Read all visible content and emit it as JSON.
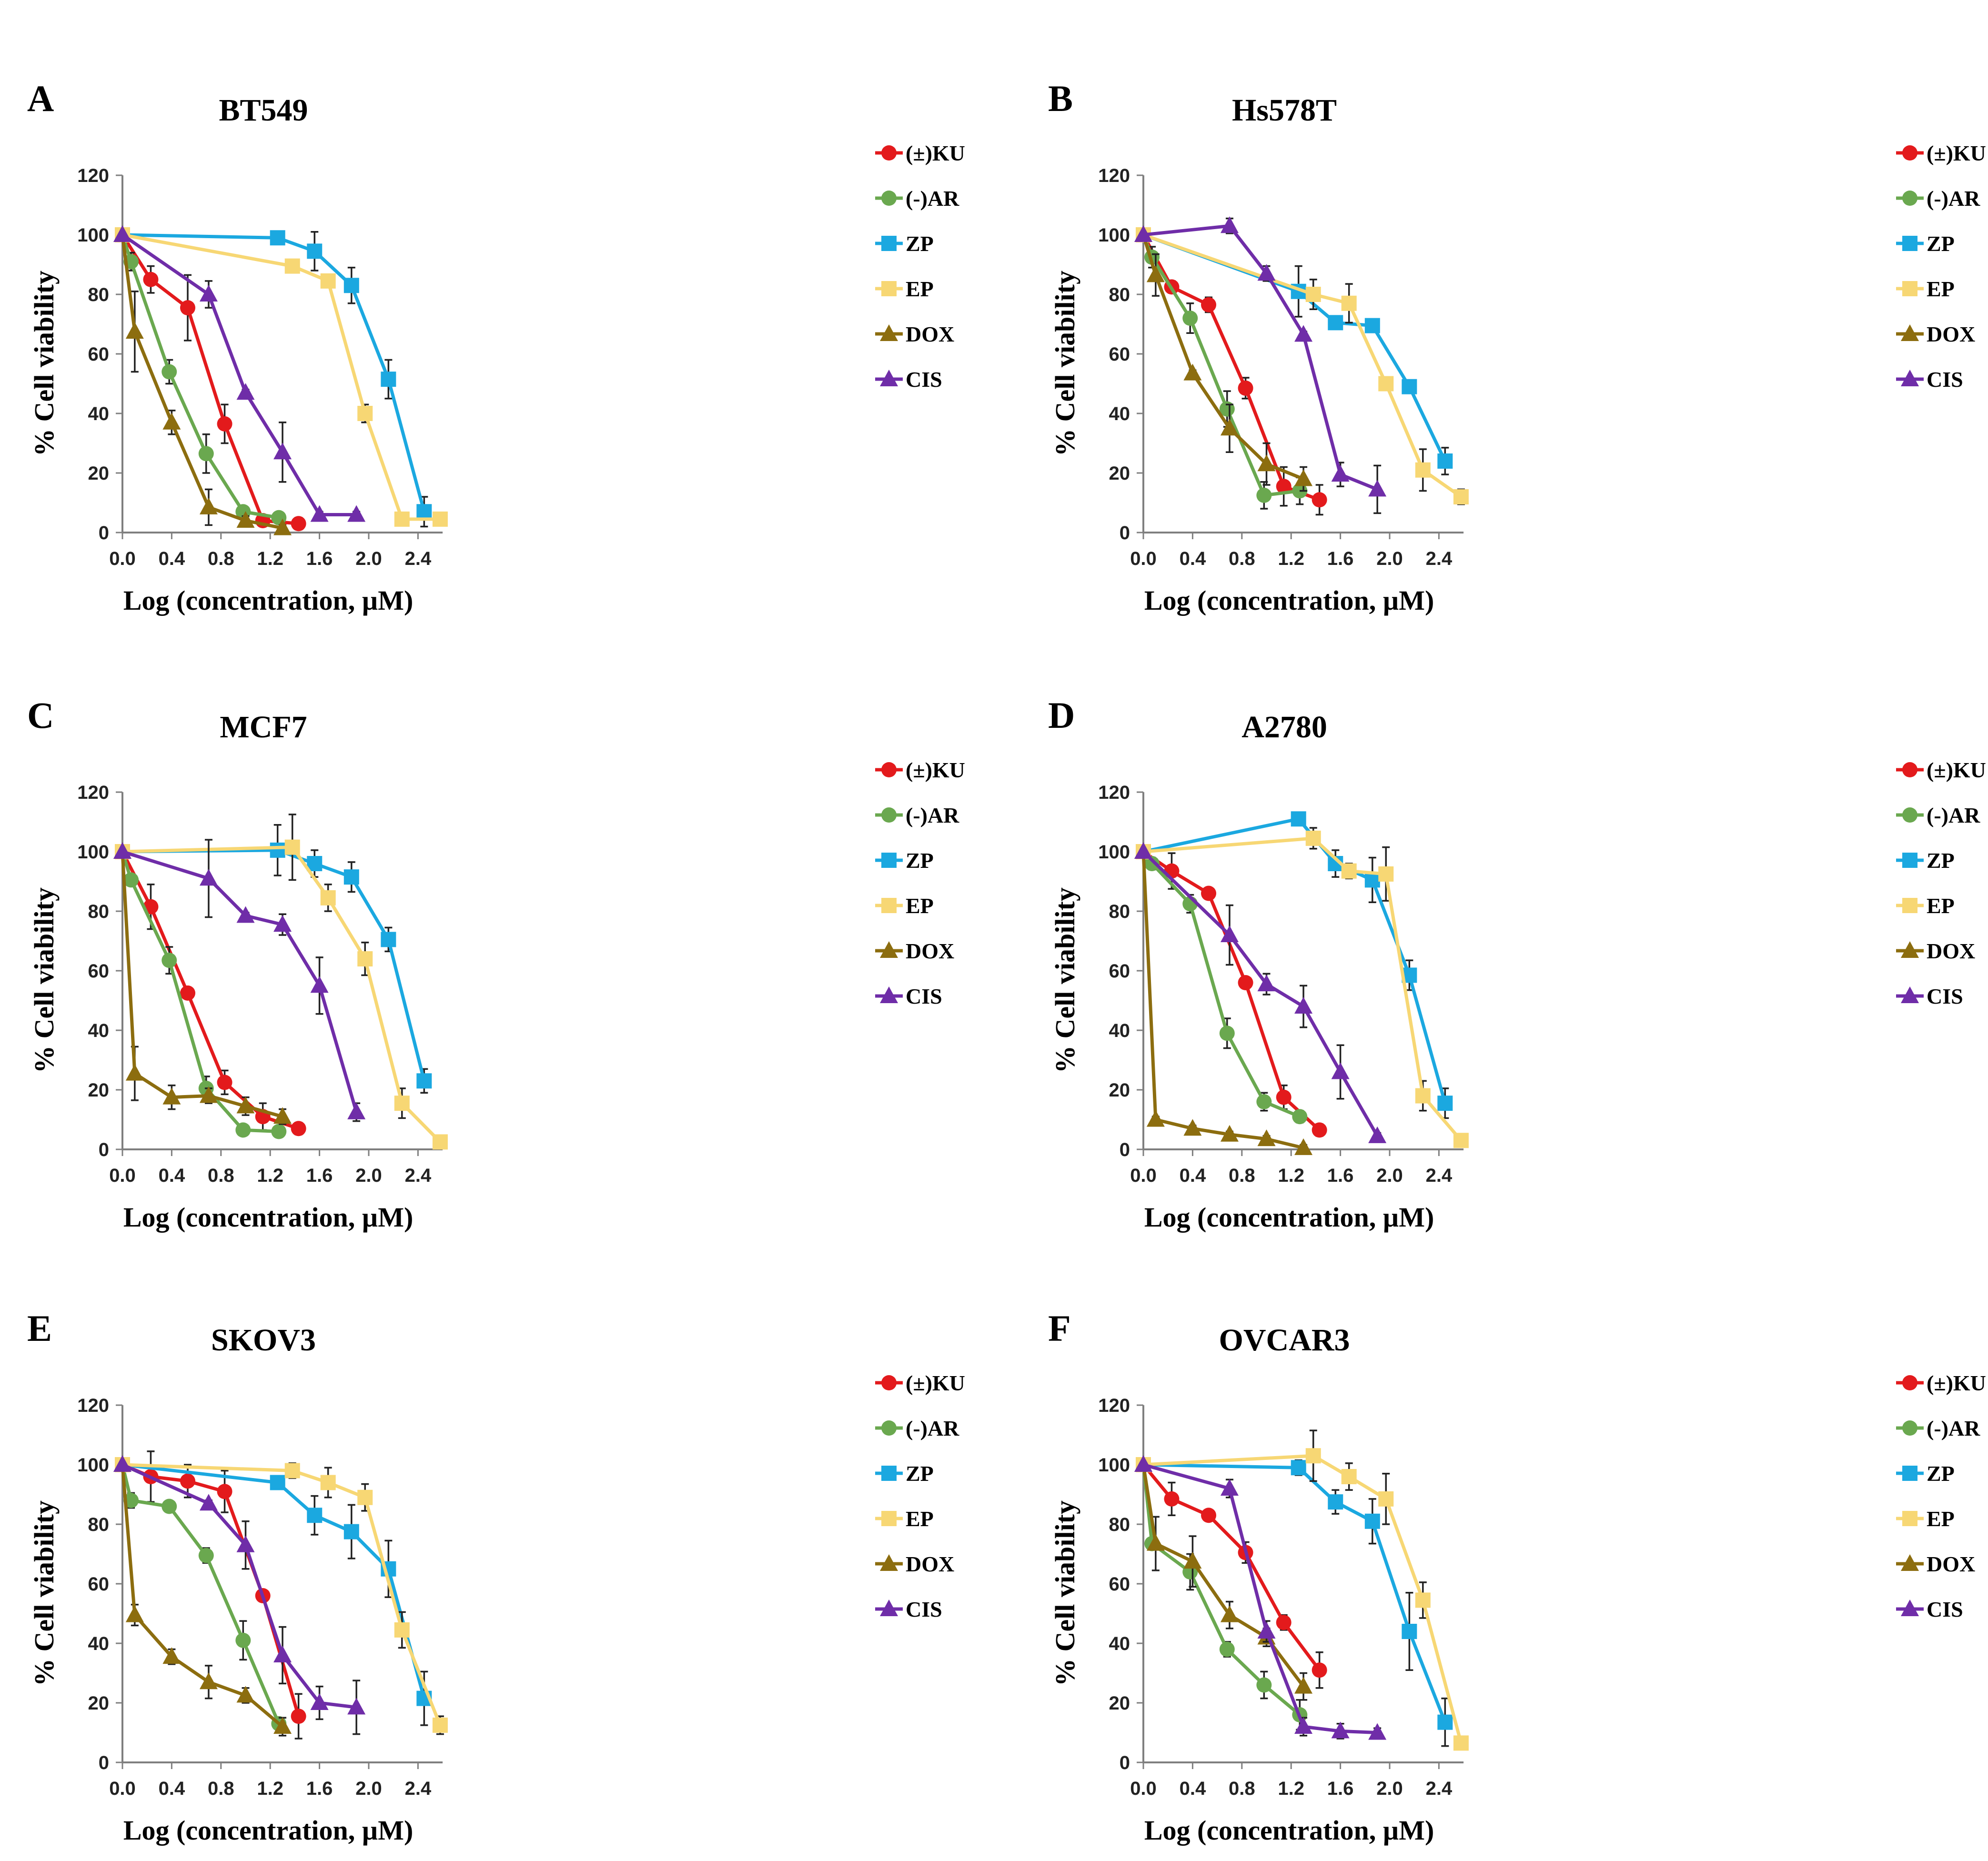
{
  "figure": {
    "xlabel": "Log (concentration, µM)",
    "ylabel": "% Cell viability",
    "x_ticks": [
      0.0,
      0.4,
      0.8,
      1.2,
      1.6,
      2.0,
      2.4
    ],
    "y_ticks": [
      0,
      20,
      40,
      60,
      80,
      100,
      120
    ],
    "xlim": [
      0,
      2.6
    ],
    "ylim": [
      0,
      120
    ]
  },
  "legend": [
    {
      "name": "(±)KU",
      "color": "#e31a1c",
      "marker": "circle"
    },
    {
      "name": "(-)AR",
      "color": "#6aa84f",
      "marker": "circle"
    },
    {
      "name": "ZP",
      "color": "#1ba8e0",
      "marker": "square"
    },
    {
      "name": "EP",
      "color": "#f7d774",
      "marker": "square"
    },
    {
      "name": "DOX",
      "color": "#8c6d0f",
      "marker": "triangle"
    },
    {
      "name": "CIS",
      "color": "#6f2da8",
      "marker": "triangle"
    }
  ],
  "chart_data": [
    {
      "type": "line",
      "panel": "A",
      "title": "BT549",
      "xlabel": "Log (concentration, µM)",
      "ylabel": "% Cell viability",
      "xlim": [
        0,
        2.6
      ],
      "ylim": [
        0,
        120
      ],
      "legend_position": "top-right",
      "series": [
        {
          "name": "(±)KU",
          "x": [
            0,
            0.23,
            0.53,
            0.83,
            1.14,
            1.43
          ],
          "y": [
            100,
            85,
            75.5,
            36.5,
            4,
            3
          ],
          "err": [
            0,
            4.5,
            11,
            6.5,
            1,
            2
          ]
        },
        {
          "name": "(-)AR",
          "x": [
            0,
            0.07,
            0.38,
            0.68,
            0.98,
            1.27
          ],
          "y": [
            100,
            91,
            54,
            26.5,
            7,
            5
          ],
          "err": [
            0,
            3,
            4,
            6.5,
            1,
            1
          ]
        },
        {
          "name": "ZP",
          "x": [
            0,
            1.26,
            1.56,
            1.86,
            2.16,
            2.45
          ],
          "y": [
            100,
            99,
            94.5,
            83,
            51.5,
            7
          ],
          "err": [
            0,
            1,
            6.5,
            6,
            6.5,
            5
          ]
        },
        {
          "name": "EP",
          "x": [
            0,
            1.38,
            1.67,
            1.97,
            2.27,
            2.58
          ],
          "y": [
            100,
            89.5,
            84.5,
            40,
            4.5,
            4.5
          ],
          "err": [
            0,
            2,
            1.5,
            3,
            1,
            1
          ]
        },
        {
          "name": "DOX",
          "x": [
            0,
            0.1,
            0.4,
            0.7,
            1.0,
            1.3
          ],
          "y": [
            100,
            67.5,
            37,
            8.5,
            4,
            1.5
          ],
          "err": [
            0,
            13.5,
            4,
            6,
            1.5,
            1
          ]
        },
        {
          "name": "CIS",
          "x": [
            0,
            0.7,
            1.0,
            1.3,
            1.6,
            1.9
          ],
          "y": [
            100,
            80,
            47,
            27,
            6,
            6
          ],
          "err": [
            0,
            4.5,
            1,
            10,
            1,
            1
          ]
        }
      ]
    },
    {
      "type": "line",
      "panel": "B",
      "title": "Hs578T",
      "xlabel": "Log (concentration, µM)",
      "ylabel": "% Cell viability",
      "xlim": [
        0,
        2.6
      ],
      "ylim": [
        0,
        120
      ],
      "legend_position": "top-right",
      "series": [
        {
          "name": "(±)KU",
          "x": [
            0,
            0.23,
            0.53,
            0.83,
            1.14,
            1.43
          ],
          "y": [
            100,
            82.5,
            76.5,
            48.5,
            15.5,
            11
          ],
          "err": [
            0,
            2,
            2.5,
            3.5,
            6.5,
            5
          ]
        },
        {
          "name": "(-)AR",
          "x": [
            0,
            0.07,
            0.38,
            0.68,
            0.98,
            1.27
          ],
          "y": [
            100,
            92.5,
            72,
            41.5,
            12.5,
            14
          ],
          "err": [
            0,
            3.5,
            5,
            6,
            4.5,
            4.5
          ]
        },
        {
          "name": "ZP",
          "x": [
            0,
            1.26,
            1.56,
            1.86,
            2.16,
            2.45
          ],
          "y": [
            100,
            81,
            70.5,
            69.5,
            49,
            24
          ],
          "err": [
            0,
            8.5,
            1,
            1,
            1,
            4.5
          ]
        },
        {
          "name": "EP",
          "x": [
            0,
            1.38,
            1.67,
            1.97,
            2.27,
            2.58
          ],
          "y": [
            100,
            80,
            77,
            50,
            21,
            12
          ],
          "err": [
            0,
            5,
            6.5,
            1,
            7,
            2.5
          ]
        },
        {
          "name": "DOX",
          "x": [
            0,
            0.1,
            0.4,
            0.7,
            1.0,
            1.3
          ],
          "y": [
            100,
            86.5,
            53.5,
            35,
            23,
            18
          ],
          "err": [
            0,
            7,
            1,
            8,
            7,
            4
          ]
        },
        {
          "name": "CIS",
          "x": [
            0,
            0.7,
            1.0,
            1.3,
            1.6,
            1.9
          ],
          "y": [
            100,
            103,
            87,
            66.5,
            19.5,
            14.5
          ],
          "err": [
            0,
            2.5,
            2.5,
            1,
            4,
            8
          ]
        }
      ]
    },
    {
      "type": "line",
      "panel": "C",
      "title": "MCF7",
      "xlabel": "Log (concentration, µM)",
      "ylabel": "% Cell viability",
      "xlim": [
        0,
        2.6
      ],
      "ylim": [
        0,
        120
      ],
      "legend_position": "top-right",
      "series": [
        {
          "name": "(±)KU",
          "x": [
            0,
            0.23,
            0.53,
            0.83,
            1.14,
            1.43
          ],
          "y": [
            100,
            81.5,
            52.5,
            22.5,
            11,
            7
          ],
          "err": [
            0,
            7.5,
            1,
            4,
            4.5,
            2
          ]
        },
        {
          "name": "(-)AR",
          "x": [
            0,
            0.07,
            0.38,
            0.68,
            0.98,
            1.27
          ],
          "y": [
            100,
            90.5,
            63.5,
            20.5,
            6.5,
            6
          ],
          "err": [
            0,
            1,
            4.5,
            4,
            1.5,
            1
          ]
        },
        {
          "name": "ZP",
          "x": [
            0,
            1.26,
            1.56,
            1.86,
            2.16,
            2.45
          ],
          "y": [
            100,
            100.5,
            96,
            91.5,
            70.5,
            23
          ],
          "err": [
            0,
            8.5,
            4.5,
            5,
            4,
            4
          ]
        },
        {
          "name": "EP",
          "x": [
            0,
            1.38,
            1.67,
            1.97,
            2.27,
            2.58
          ],
          "y": [
            100,
            101.5,
            84.5,
            64,
            15.5,
            2.5
          ],
          "err": [
            0,
            11,
            4.5,
            5.5,
            5,
            1
          ]
        },
        {
          "name": "DOX",
          "x": [
            0,
            0.1,
            0.4,
            0.7,
            1.0,
            1.3
          ],
          "y": [
            100,
            25.5,
            17.5,
            18,
            14.5,
            11
          ],
          "err": [
            0,
            9,
            4,
            2.5,
            3,
            2.5
          ]
        },
        {
          "name": "CIS",
          "x": [
            0,
            0.7,
            1.0,
            1.3,
            1.6,
            1.9
          ],
          "y": [
            100,
            91,
            78.5,
            75.5,
            55,
            12.5
          ],
          "err": [
            0,
            13,
            1,
            3.5,
            9.5,
            3
          ]
        }
      ]
    },
    {
      "type": "line",
      "panel": "D",
      "title": "A2780",
      "xlabel": "Log (concentration, µM)",
      "ylabel": "% Cell viability",
      "xlim": [
        0,
        2.6
      ],
      "ylim": [
        0,
        120
      ],
      "legend_position": "top-right",
      "series": [
        {
          "name": "(±)KU",
          "x": [
            0,
            0.23,
            0.53,
            0.83,
            1.14,
            1.43
          ],
          "y": [
            100,
            93.5,
            86,
            56,
            17.5,
            6.5
          ],
          "err": [
            0,
            6,
            1,
            1,
            4,
            2
          ]
        },
        {
          "name": "(-)AR",
          "x": [
            0,
            0.07,
            0.38,
            0.68,
            0.98,
            1.27
          ],
          "y": [
            100,
            96,
            82.5,
            39,
            16,
            11
          ],
          "err": [
            0,
            2,
            3,
            5,
            3,
            2
          ]
        },
        {
          "name": "ZP",
          "x": [
            0,
            1.26,
            1.56,
            1.86,
            2.16,
            2.45
          ],
          "y": [
            100,
            111,
            96,
            90.5,
            58.5,
            15.5
          ],
          "err": [
            0,
            1,
            4.5,
            7.5,
            5,
            5
          ]
        },
        {
          "name": "EP",
          "x": [
            0,
            1.38,
            1.67,
            1.97,
            2.27,
            2.58
          ],
          "y": [
            100,
            104.5,
            93.5,
            92.5,
            18,
            3
          ],
          "err": [
            0,
            3.5,
            2.5,
            9,
            5,
            1
          ]
        },
        {
          "name": "DOX",
          "x": [
            0,
            0.1,
            0.4,
            0.7,
            1.0,
            1.3
          ],
          "y": [
            100,
            10,
            7,
            5,
            3.5,
            0.5
          ],
          "err": [
            0,
            1,
            1,
            1,
            1,
            1
          ]
        },
        {
          "name": "CIS",
          "x": [
            0,
            0.7,
            1.0,
            1.3,
            1.6,
            1.9
          ],
          "y": [
            100,
            72,
            55.5,
            48,
            26,
            4.5
          ],
          "err": [
            0,
            10,
            3.5,
            7,
            9,
            1
          ]
        }
      ]
    },
    {
      "type": "line",
      "panel": "E",
      "title": "SKOV3",
      "xlabel": "Log (concentration, µM)",
      "ylabel": "% Cell viability",
      "xlim": [
        0,
        2.6
      ],
      "ylim": [
        0,
        120
      ],
      "legend_position": "top-right",
      "series": [
        {
          "name": "(±)KU",
          "x": [
            0,
            0.23,
            0.53,
            0.83,
            1.14,
            1.43
          ],
          "y": [
            100,
            96,
            94.5,
            91,
            56,
            15.5
          ],
          "err": [
            0,
            8.5,
            5.5,
            7,
            1,
            7.5
          ]
        },
        {
          "name": "(-)AR",
          "x": [
            0,
            0.07,
            0.38,
            0.68,
            0.98,
            1.27
          ],
          "y": [
            100,
            88,
            86,
            69.5,
            41,
            13
          ],
          "err": [
            0,
            2.5,
            1,
            2.5,
            6.5,
            2
          ]
        },
        {
          "name": "ZP",
          "x": [
            0,
            1.26,
            1.56,
            1.86,
            2.16,
            2.45
          ],
          "y": [
            100,
            94,
            83,
            77.5,
            65,
            21.5
          ],
          "err": [
            0,
            2,
            6.5,
            9,
            9.5,
            9
          ]
        },
        {
          "name": "EP",
          "x": [
            0,
            1.38,
            1.67,
            1.97,
            2.27,
            2.58
          ],
          "y": [
            100,
            98,
            94,
            89,
            44.5,
            12.5
          ],
          "err": [
            0,
            2.5,
            5,
            4.5,
            6,
            3
          ]
        },
        {
          "name": "DOX",
          "x": [
            0,
            0.1,
            0.4,
            0.7,
            1.0,
            1.3
          ],
          "y": [
            100,
            49.5,
            35.5,
            27,
            22.5,
            12
          ],
          "err": [
            0,
            3.5,
            2.5,
            5.5,
            2.5,
            3
          ]
        },
        {
          "name": "CIS",
          "x": [
            0,
            0.7,
            1.0,
            1.3,
            1.6,
            1.9
          ],
          "y": [
            100,
            87,
            73,
            36,
            20,
            18.5
          ],
          "err": [
            0,
            1,
            8,
            9.5,
            5.5,
            9
          ]
        }
      ]
    },
    {
      "type": "line",
      "panel": "F",
      "title": "OVCAR3",
      "xlabel": "Log (concentration, µM)",
      "ylabel": "% Cell viability",
      "xlim": [
        0,
        2.6
      ],
      "ylim": [
        0,
        120
      ],
      "legend_position": "top-right",
      "series": [
        {
          "name": "(±)KU",
          "x": [
            0,
            0.23,
            0.53,
            0.83,
            1.14,
            1.43
          ],
          "y": [
            100,
            88.5,
            83,
            70.5,
            47,
            31
          ],
          "err": [
            0,
            5.5,
            1,
            3.5,
            2.5,
            6
          ]
        },
        {
          "name": "(-)AR",
          "x": [
            0,
            0.07,
            0.38,
            0.68,
            0.98,
            1.27
          ],
          "y": [
            100,
            73.5,
            64,
            38,
            26,
            16
          ],
          "err": [
            0,
            1,
            6,
            2.5,
            4.5,
            5
          ]
        },
        {
          "name": "ZP",
          "x": [
            0,
            1.26,
            1.56,
            1.86,
            2.16,
            2.45
          ],
          "y": [
            100,
            99,
            87.5,
            81,
            44,
            13.5
          ],
          "err": [
            0,
            2.5,
            4,
            7.5,
            13,
            8
          ]
        },
        {
          "name": "EP",
          "x": [
            0,
            1.38,
            1.67,
            1.97,
            2.27,
            2.58
          ],
          "y": [
            100,
            103,
            96,
            88.5,
            54.5,
            6.5
          ],
          "err": [
            0,
            8.5,
            4.5,
            8.5,
            6,
            2
          ]
        },
        {
          "name": "DOX",
          "x": [
            0,
            0.1,
            0.4,
            0.7,
            1.0,
            1.3
          ],
          "y": [
            100,
            73.5,
            67.5,
            49.5,
            42,
            25.5
          ],
          "err": [
            0,
            9,
            8.5,
            4.5,
            3,
            4.5
          ]
        },
        {
          "name": "CIS",
          "x": [
            0,
            0.7,
            1.0,
            1.3,
            1.6,
            1.9
          ],
          "y": [
            100,
            92,
            44,
            12,
            10.5,
            10
          ],
          "err": [
            0,
            3,
            3.5,
            3,
            2.5,
            1.5
          ]
        }
      ]
    }
  ]
}
